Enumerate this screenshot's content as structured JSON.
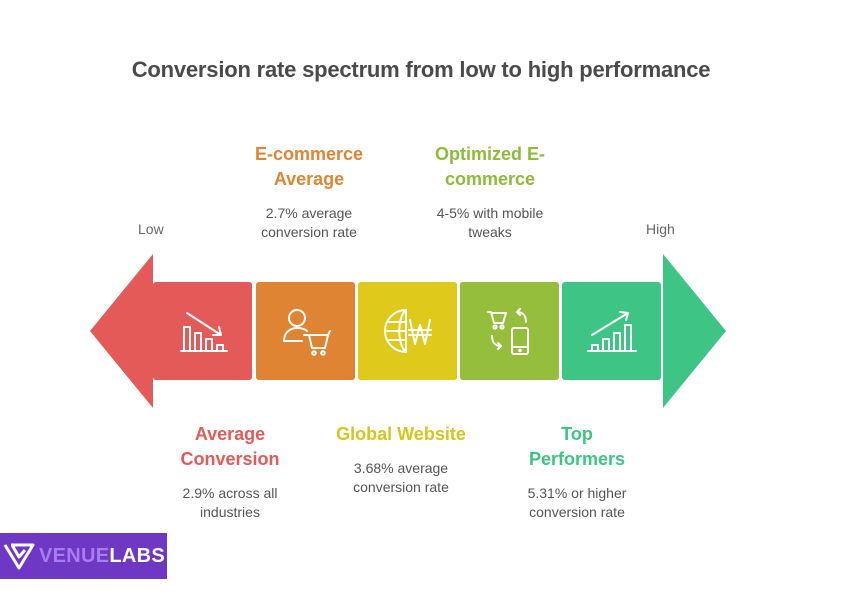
{
  "title": "Conversion rate spectrum from low to high performance",
  "spectrum": {
    "low_label": "Low",
    "high_label": "High"
  },
  "colors": {
    "red": "#e35a58",
    "orange": "#df8432",
    "yellow": "#dfca1c",
    "lime": "#94be3c",
    "green": "#3ec585",
    "logo_bg": "#6e37c4"
  },
  "stages": [
    {
      "heading": "Average Conversion",
      "heading_lines": [
        "Average",
        "Conversion"
      ],
      "desc_lines": [
        "2.9% across all",
        "industries"
      ],
      "icon": "declining-bar-chart-icon"
    },
    {
      "heading": "E-commerce Average",
      "heading_lines": [
        "E-commerce",
        "Average"
      ],
      "desc_lines": [
        "2.7% average",
        "conversion rate"
      ],
      "icon": "user-shopping-cart-icon"
    },
    {
      "heading": "Global Website",
      "heading_lines": [
        "Global Website"
      ],
      "desc_lines": [
        "3.68% average",
        "conversion rate"
      ],
      "icon": "globe-currency-icon"
    },
    {
      "heading": "Optimized E-commerce",
      "heading_lines": [
        "Optimized E-",
        "commerce"
      ],
      "desc_lines": [
        "4-5% with mobile",
        "tweaks"
      ],
      "icon": "cart-mobile-sync-icon"
    },
    {
      "heading": "Top Performers",
      "heading_lines": [
        "Top",
        "Performers"
      ],
      "desc_lines": [
        "5.31% or higher",
        "conversion rate"
      ],
      "icon": "rising-bar-chart-icon"
    }
  ],
  "logo": {
    "part1": "VENUE",
    "part2": "LABS"
  }
}
